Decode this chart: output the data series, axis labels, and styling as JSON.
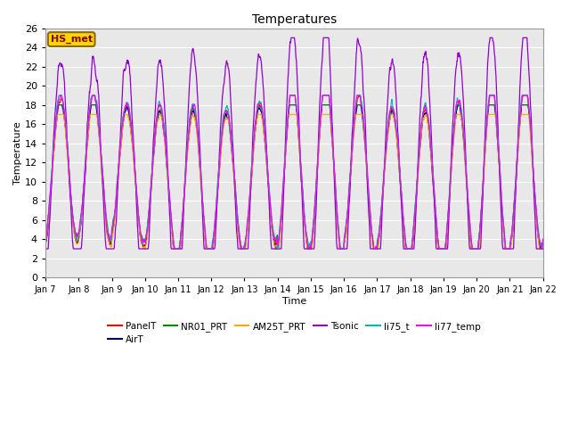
{
  "title": "Temperatures",
  "xlabel": "Time",
  "ylabel": "Temperature",
  "ylim": [
    0,
    26
  ],
  "yticks": [
    0,
    2,
    4,
    6,
    8,
    10,
    12,
    14,
    16,
    18,
    20,
    22,
    24,
    26
  ],
  "x_tick_labels": [
    "Jan 7",
    "Jan 8",
    "Jan 9",
    "Jan 10",
    "Jan 11",
    "Jan 12",
    "Jan 13",
    "Jan 14",
    "Jan 15",
    "Jan 16",
    "Jan 17",
    "Jan 18",
    "Jan 19",
    "Jan 20",
    "Jan 21",
    "Jan 22"
  ],
  "series": [
    "PanelT",
    "AirT",
    "NR01_PRT",
    "AM25T_PRT",
    "Tsonic",
    "li75_t",
    "li77_temp"
  ],
  "colors": [
    "#ff0000",
    "#00008b",
    "#008800",
    "#ffa500",
    "#9400d3",
    "#00bbbb",
    "#ff00ff"
  ],
  "linewidths": [
    0.8,
    0.8,
    0.8,
    0.8,
    0.9,
    0.8,
    0.8
  ],
  "hs_met_label": "HS_met",
  "background_color": "#e8e8e8",
  "figure_background": "#ffffff",
  "annotation_box_color": "#ffd700",
  "annotation_box_edge": "#8b6914",
  "annotation_text_color": "#8b0000",
  "n_days": 15,
  "n_per_day": 96,
  "day_peak_amps": [
    7.5,
    7.5,
    7.0,
    7.5,
    8.0,
    7.5,
    7.5,
    8.5,
    9.0,
    8.0,
    7.5,
    8.0,
    8.5,
    9.0,
    8.5
  ],
  "tsonic_extra_amps": [
    4.0,
    4.0,
    5.0,
    5.0,
    6.0,
    5.0,
    5.0,
    6.0,
    6.5,
    5.5,
    5.0,
    5.5,
    5.5,
    6.0,
    6.0
  ],
  "base_mean": 10.5,
  "noise_base": 0.5,
  "noise_tsonic": 0.8
}
